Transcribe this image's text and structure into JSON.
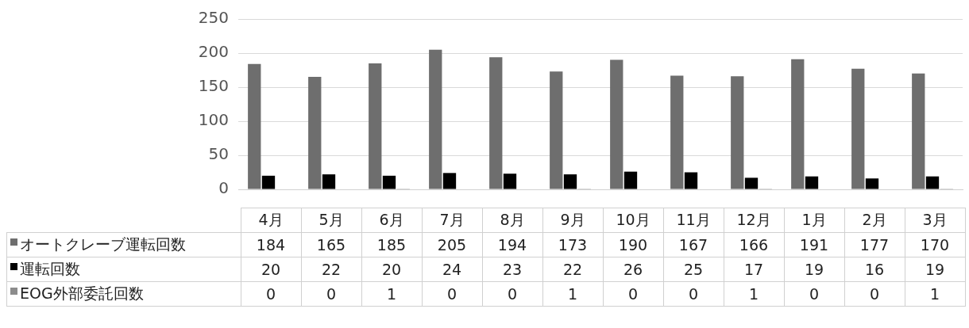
{
  "chart_data": {
    "type": "bar",
    "categories": [
      "4月",
      "5月",
      "6月",
      "7月",
      "8月",
      "9月",
      "10月",
      "11月",
      "12月",
      "1月",
      "2月",
      "3月"
    ],
    "series": [
      {
        "name": "オートクレーブ運転回数",
        "color": "#6e6e6e",
        "values": [
          184,
          165,
          185,
          205,
          194,
          173,
          190,
          167,
          166,
          191,
          177,
          170
        ]
      },
      {
        "name": "運転回数",
        "color": "#000000",
        "values": [
          20,
          22,
          20,
          24,
          23,
          22,
          26,
          25,
          17,
          19,
          16,
          19
        ]
      },
      {
        "name": "EOG外部委託回数",
        "color": "#8c8c8c",
        "values": [
          0,
          0,
          1,
          0,
          0,
          1,
          0,
          0,
          1,
          0,
          0,
          1
        ]
      }
    ],
    "ylim": [
      0,
      250
    ],
    "yticks": [
      0,
      50,
      100,
      150,
      200,
      250
    ],
    "grid": "y",
    "legend": "bottom",
    "data_labels": true
  }
}
